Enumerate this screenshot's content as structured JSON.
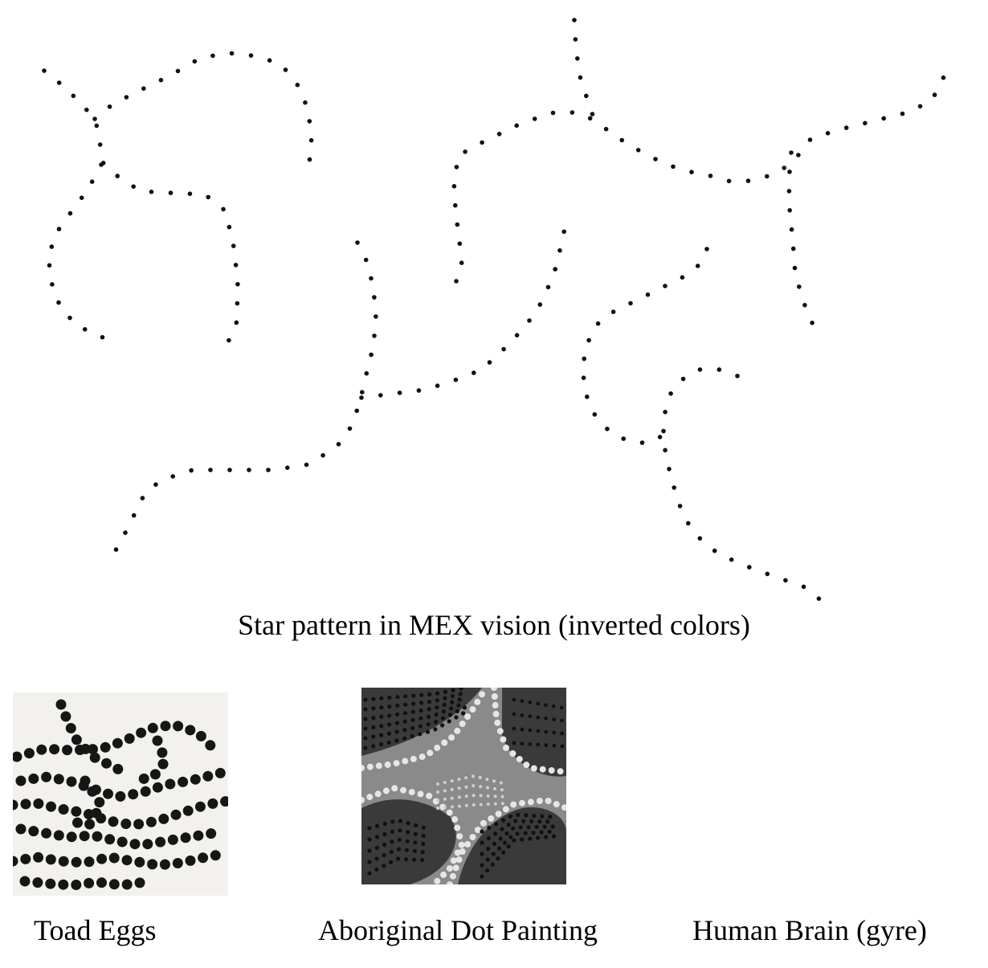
{
  "captions": {
    "main": "Star pattern in MEX vision (inverted colors)",
    "toad": "Toad Eggs",
    "aboriginal": "Aboriginal Dot Painting",
    "brain": "Human Brain (gyre)"
  },
  "colors": {
    "dot": "#111111",
    "toad_egg": "#161616",
    "painting_dark": "#3a3a3a",
    "painting_mid": "#8a8a8a",
    "painting_light": "#e6e6e6",
    "brain_outline": "#000000"
  }
}
